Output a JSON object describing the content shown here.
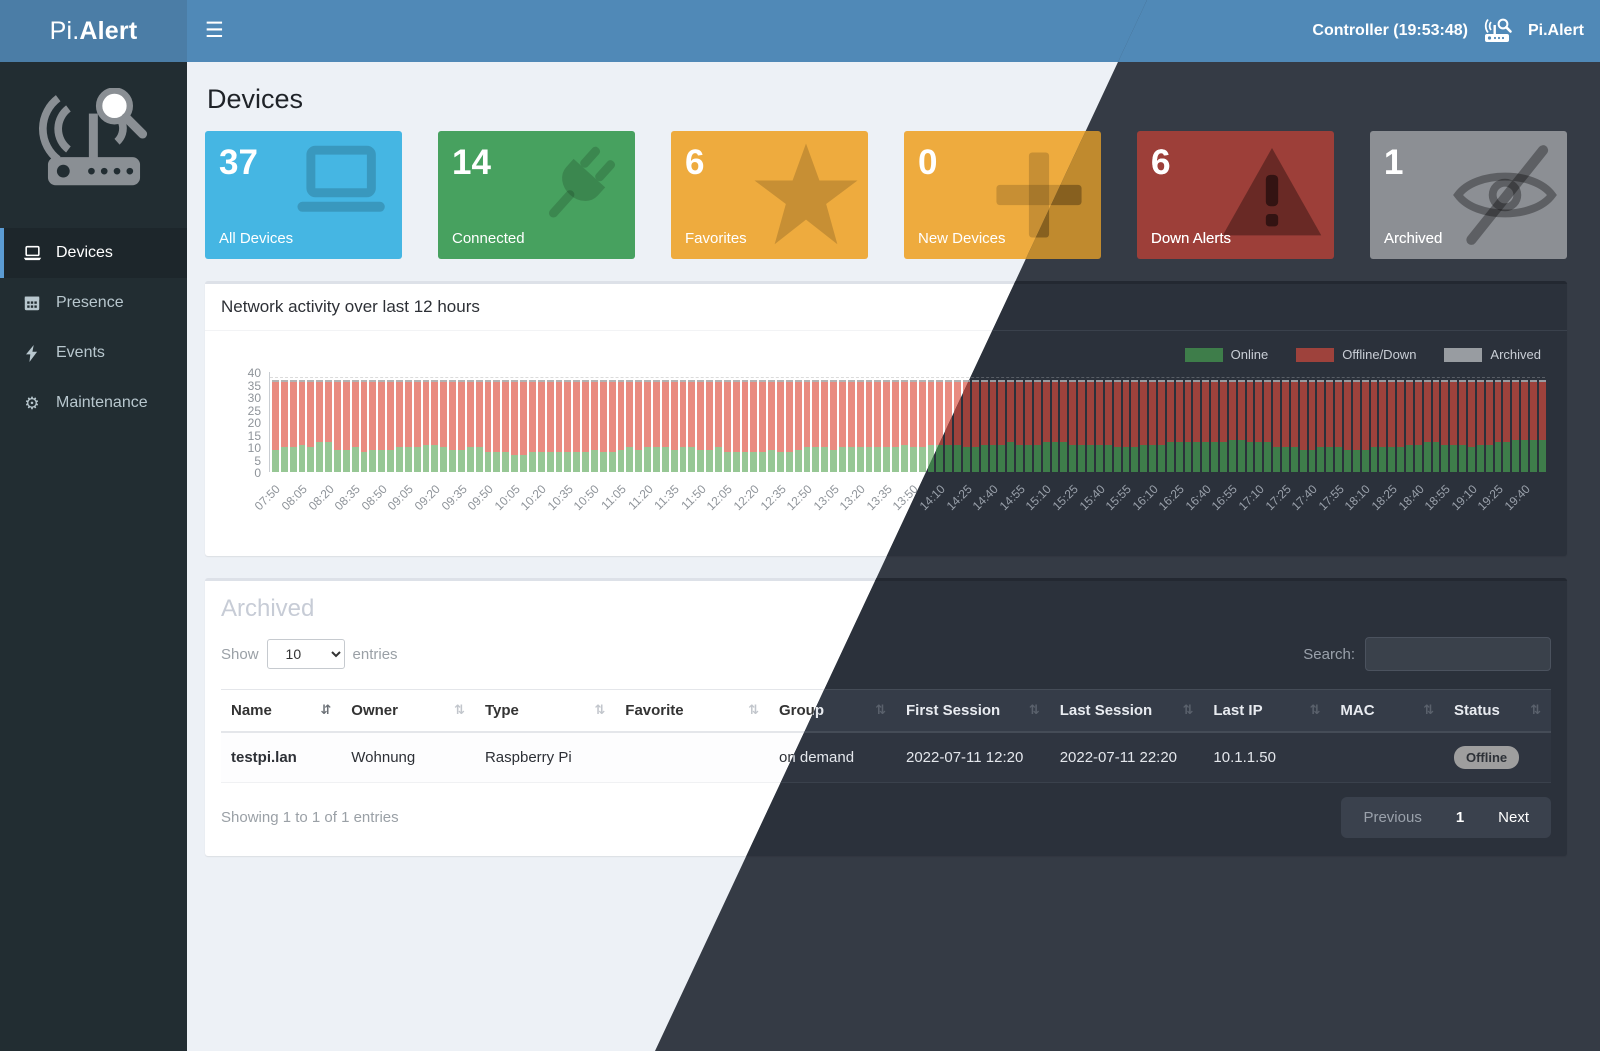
{
  "navbar": {
    "brand_pi": "Pi.",
    "brand_alert": "Alert",
    "controller": "Controller (19:53:48)",
    "right_brand": "Pi.Alert"
  },
  "sidebar": {
    "items": [
      {
        "label": "Devices",
        "active": true
      },
      {
        "label": "Presence",
        "active": false
      },
      {
        "label": "Events",
        "active": false
      },
      {
        "label": "Maintenance",
        "active": false
      }
    ]
  },
  "page": {
    "title": "Devices"
  },
  "cards": [
    {
      "value": "37",
      "label": "All Devices",
      "icon": "laptop-icon"
    },
    {
      "value": "14",
      "label": "Connected",
      "icon": "plug-icon"
    },
    {
      "value": "6",
      "label": "Favorites",
      "icon": "star-icon"
    },
    {
      "value": "0",
      "label": "New Devices",
      "icon": "plus-icon"
    },
    {
      "value": "6",
      "label": "Down Alerts",
      "icon": "warning-icon"
    },
    {
      "value": "1",
      "label": "Archived",
      "icon": "eye-slash-icon"
    }
  ],
  "colors": {
    "light": {
      "card-blue": "#45b6e3",
      "card-green": "#47a15f",
      "card-orange": "#eeab3e",
      "card-red": "#c9463e",
      "card-gray": "#a6a9ad",
      "chart-online": "#97c795",
      "chart-offline": "#e98b80",
      "chart-archived": "#b3b3b3"
    },
    "dark": {
      "card-blue": "#3795bf",
      "card-green": "#3b854f",
      "card-orange": "#c08a2e",
      "card-red": "#9d3f39",
      "card-gray": "#8c8f94",
      "chart-online": "#3e7d4a",
      "chart-offline": "#9e423c",
      "chart-archived": "#989ca1"
    }
  },
  "chart_data": {
    "type": "bar",
    "stacked": true,
    "title": "Network activity over last 12 hours",
    "ylim": [
      0,
      40
    ],
    "yticks": [
      0,
      5,
      10,
      15,
      20,
      25,
      30,
      35,
      40
    ],
    "legend": [
      "Online",
      "Offline/Down",
      "Archived"
    ],
    "legend_position": "top-right",
    "grid": "single dashed line near 37",
    "total_devices": 37,
    "archived_per_bar": 1,
    "x_tick_labels": [
      "07:50",
      "08:05",
      "08:20",
      "08:35",
      "08:50",
      "09:05",
      "09:20",
      "09:35",
      "09:50",
      "10:05",
      "10:20",
      "10:35",
      "10:50",
      "11:05",
      "11:20",
      "11:35",
      "11:50",
      "12:05",
      "12:20",
      "12:35",
      "12:50",
      "13:05",
      "13:20",
      "13:35",
      "13:50",
      "14:10",
      "14:25",
      "14:40",
      "14:55",
      "15:10",
      "15:25",
      "15:40",
      "15:55",
      "16:10",
      "16:25",
      "16:40",
      "16:55",
      "17:10",
      "17:25",
      "17:40",
      "17:55",
      "18:10",
      "18:25",
      "18:40",
      "18:55",
      "19:10",
      "19:25",
      "19:40"
    ],
    "bars_per_tick": 3,
    "online_per_bar": [
      9,
      10,
      10,
      11,
      10,
      12,
      12,
      9,
      9,
      10,
      8,
      9,
      9,
      9,
      10,
      10,
      10,
      11,
      11,
      10,
      9,
      9,
      10,
      10,
      8,
      8,
      8,
      7,
      7,
      8,
      8,
      8,
      8,
      8,
      8,
      8,
      9,
      8,
      8,
      9,
      10,
      9,
      10,
      10,
      10,
      9,
      10,
      10,
      9,
      9,
      10,
      8,
      8,
      8,
      8,
      8,
      9,
      8,
      8,
      9,
      10,
      10,
      10,
      9,
      10,
      10,
      10,
      10,
      10,
      10,
      10,
      11,
      10,
      10,
      11,
      11,
      11,
      11,
      10,
      10,
      11,
      11,
      11,
      12,
      11,
      11,
      11,
      12,
      12,
      12,
      11,
      11,
      11,
      11,
      11,
      10,
      10,
      10,
      11,
      11,
      11,
      12,
      12,
      12,
      12,
      12,
      12,
      12,
      13,
      13,
      12,
      12,
      12,
      10,
      10,
      10,
      9,
      9,
      10,
      10,
      10,
      9,
      9,
      9,
      10,
      10,
      10,
      10,
      11,
      11,
      12,
      12,
      11,
      11,
      11,
      10,
      11,
      11,
      12,
      12,
      13,
      13,
      13,
      13
    ],
    "series_note": "offline = total_devices - archived_per_bar - online"
  },
  "archived": {
    "title": "Archived",
    "show_label": "Show",
    "page_size": "10",
    "entries_label": "entries",
    "search_label": "Search:",
    "search_value": "",
    "columns": [
      {
        "label": "Name",
        "sorted": true
      },
      {
        "label": "Owner",
        "sorted": false
      },
      {
        "label": "Type",
        "sorted": false
      },
      {
        "label": "Favorite",
        "sorted": false
      },
      {
        "label": "Group",
        "sorted": false
      },
      {
        "label": "First Session",
        "sorted": false
      },
      {
        "label": "Last Session",
        "sorted": false
      },
      {
        "label": "Last IP",
        "sorted": false
      },
      {
        "label": "MAC",
        "sorted": false
      },
      {
        "label": "Status",
        "sorted": false
      }
    ],
    "rows": [
      {
        "name": "testpi.lan",
        "owner": "Wohnung",
        "type": "Raspberry Pi",
        "favorite": "",
        "group": "on demand",
        "first_session": "2022-07-11 12:20",
        "last_session": "2022-07-11 22:20",
        "last_ip": "10.1.1.50",
        "mac": "",
        "status": "Offline"
      }
    ],
    "footer_text": "Showing 1 to 1 of 1 entries",
    "pagination": {
      "previous": "Previous",
      "page": "1",
      "next": "Next"
    }
  }
}
